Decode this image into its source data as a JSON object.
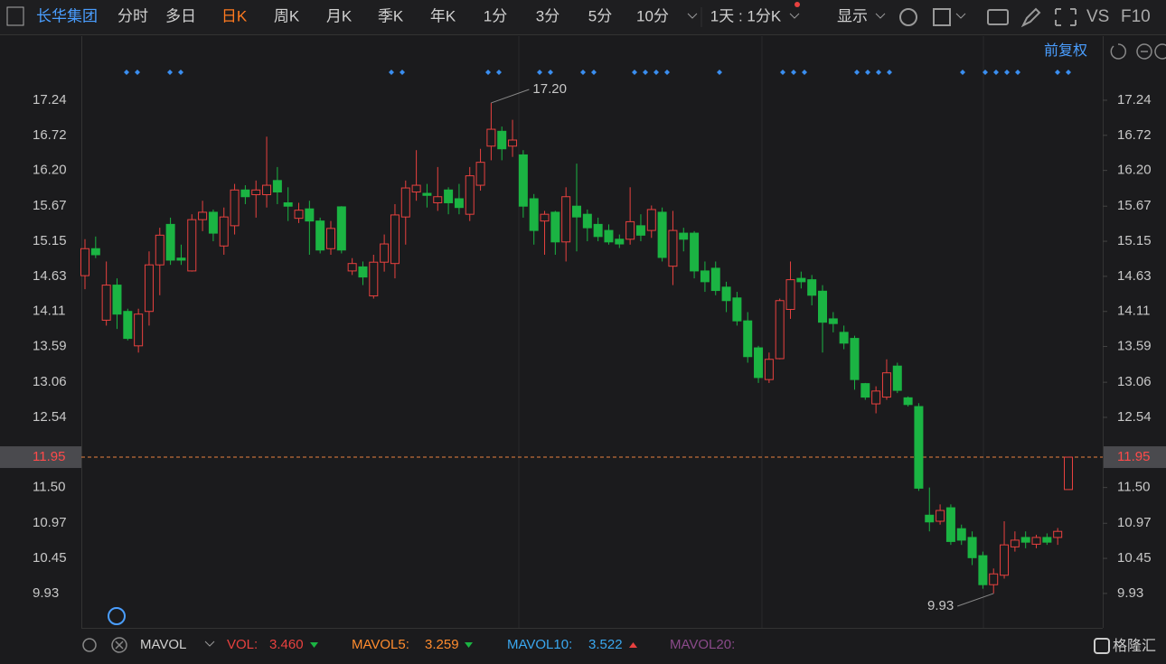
{
  "toolbar": {
    "stock": "长华集团",
    "tabs": [
      "分时",
      "多日",
      "日K",
      "周K",
      "月K",
      "季K",
      "年K",
      "1分",
      "3分",
      "5分",
      "10分"
    ],
    "period": "1天 : 1分K",
    "display": "显示",
    "vs": "VS",
    "f10": "F10"
  },
  "adjust": "前复权",
  "indicator": {
    "name": "MAVOL",
    "vol_label": "VOL:",
    "vol": {
      "value": 3.46,
      "label": "3.460"
    },
    "mavol5_label": "MAVOL5:",
    "mavol5": 3.259,
    "mavol10_label": "MAVOL10:",
    "mavol10": 3.522,
    "mavol20_label": "MAVOL20:"
  },
  "watermark": "格隆汇",
  "chart_data": {
    "type": "candlestick",
    "up_color": "#e8413f",
    "down_color": "#1bb443",
    "ylim": [
      9.42,
      18.19
    ],
    "yticks": [
      17.24,
      16.72,
      {
        "value": 16.2,
        "label": "16.20"
      },
      15.67,
      15.15,
      14.63,
      14.11,
      13.59,
      13.06,
      12.54,
      {
        "value": 11.5,
        "label": "11.50"
      },
      10.97,
      10.45,
      9.93
    ],
    "current_price": 11.95,
    "annotations": [
      {
        "value": 17.2,
        "label": "17.20"
      },
      9.93
    ],
    "open": [
      14.64,
      15.04,
      13.98,
      14.5,
      14.11,
      13.6,
      14.11,
      14.8,
      15.4,
      14.9,
      14.71,
      15.47,
      15.58,
      15.08,
      15.38,
      15.91,
      15.84,
      15.84,
      16.05,
      15.72,
      15.49,
      15.63,
      15.45,
      15.04,
      15.66,
      14.71,
      14.77,
      14.34,
      14.84,
      14.82,
      15.51,
      15.88,
      15.86,
      15.72,
      15.91,
      15.78,
      15.55,
      15.98,
      16.56,
      16.78,
      16.56,
      16.43,
      15.78,
      15.45,
      15.58,
      15.14,
      15.67,
      15.55,
      15.4,
      15.31,
      15.18,
      15.18,
      15.38,
      15.31,
      15.58,
      14.78,
      15.27,
      15.27,
      14.71,
      14.75,
      14.47,
      14.31,
      13.97,
      13.57,
      13.1,
      13.41,
      14.14,
      14.6,
      14.58,
      14.41,
      14.0,
      13.8,
      13.71,
      13.04,
      12.74,
      12.84,
      13.3,
      12.83,
      12.7,
      11.09,
      11.0,
      11.2,
      10.89,
      10.76,
      10.49,
      10.06,
      10.2,
      10.62,
      10.76,
      10.66,
      10.76,
      10.76,
      11.47
    ],
    "high": [
      15.18,
      15.22,
      14.85,
      14.6,
      14.15,
      14.15,
      15.0,
      15.35,
      15.5,
      15.1,
      15.55,
      15.75,
      15.62,
      15.65,
      16.0,
      15.98,
      16.05,
      16.7,
      16.25,
      15.95,
      15.72,
      15.75,
      15.5,
      15.45,
      15.67,
      14.9,
      14.85,
      14.95,
      15.25,
      15.7,
      16.05,
      16.5,
      16.0,
      16.25,
      15.95,
      16.0,
      16.25,
      16.52,
      17.2,
      16.85,
      16.95,
      16.5,
      15.85,
      15.6,
      15.6,
      15.95,
      16.3,
      15.62,
      15.5,
      15.4,
      15.25,
      15.95,
      15.55,
      15.68,
      15.65,
      15.6,
      15.35,
      15.3,
      14.85,
      14.85,
      14.55,
      14.4,
      14.1,
      13.6,
      13.5,
      14.3,
      14.85,
      14.7,
      14.65,
      14.5,
      14.1,
      13.9,
      13.75,
      13.05,
      13.0,
      13.4,
      13.35,
      12.85,
      12.75,
      11.5,
      11.25,
      11.25,
      10.95,
      10.85,
      10.55,
      10.3,
      11.0,
      10.85,
      10.85,
      10.8,
      10.82,
      10.9,
      11.95
    ],
    "low": [
      14.44,
      14.9,
      13.9,
      13.85,
      13.68,
      13.5,
      13.9,
      14.35,
      14.8,
      14.8,
      14.7,
      15.3,
      15.15,
      14.95,
      15.25,
      15.7,
      15.5,
      15.65,
      15.7,
      15.45,
      15.42,
      14.95,
      14.97,
      14.95,
      14.97,
      14.65,
      14.5,
      14.3,
      14.7,
      14.6,
      15.1,
      15.75,
      15.65,
      15.6,
      15.55,
      15.55,
      15.45,
      15.9,
      16.35,
      16.35,
      16.4,
      15.5,
      15.1,
      14.95,
      14.95,
      14.85,
      15.0,
      15.15,
      15.15,
      15.1,
      15.05,
      15.1,
      15.15,
      15.2,
      14.85,
      14.5,
      15.0,
      14.6,
      14.4,
      14.35,
      14.1,
      13.9,
      13.35,
      13.05,
      13.05,
      13.4,
      14.0,
      14.45,
      14.2,
      13.5,
      13.8,
      13.55,
      12.95,
      12.8,
      12.6,
      12.8,
      12.9,
      12.7,
      11.45,
      10.85,
      10.95,
      10.65,
      10.65,
      10.35,
      10.0,
      9.93,
      10.15,
      10.55,
      10.6,
      10.6,
      10.65,
      10.65,
      11.47
    ],
    "close": [
      15.04,
      14.95,
      14.5,
      14.07,
      13.71,
      14.07,
      14.8,
      15.24,
      14.87,
      14.87,
      15.47,
      15.58,
      15.27,
      15.51,
      15.91,
      15.81,
      15.91,
      15.98,
      15.88,
      15.67,
      15.61,
      15.45,
      15.02,
      15.34,
      15.02,
      14.82,
      14.62,
      14.84,
      15.11,
      15.54,
      15.94,
      15.98,
      15.83,
      15.81,
      15.72,
      15.65,
      16.12,
      16.32,
      16.81,
      16.52,
      16.65,
      15.67,
      15.31,
      15.55,
      15.14,
      15.81,
      15.51,
      15.35,
      15.22,
      15.14,
      15.11,
      15.44,
      15.24,
      15.62,
      14.91,
      15.31,
      15.18,
      14.71,
      14.55,
      14.42,
      14.27,
      13.97,
      13.44,
      13.13,
      13.4,
      14.27,
      14.58,
      14.55,
      14.35,
      13.95,
      13.93,
      13.64,
      13.1,
      12.84,
      12.93,
      13.2,
      12.94,
      12.73,
      11.49,
      10.99,
      11.16,
      10.7,
      10.72,
      10.46,
      10.06,
      10.22,
      10.65,
      10.72,
      10.69,
      10.76,
      10.69,
      10.85,
      11.95
    ]
  }
}
